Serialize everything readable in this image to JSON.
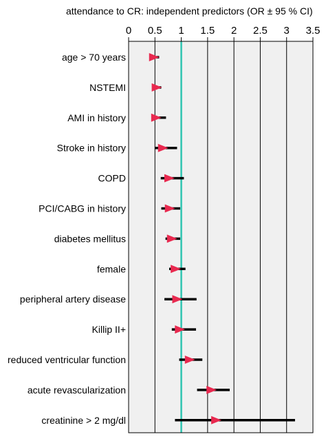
{
  "chart_data": {
    "type": "forest",
    "title": "attendance to CR: independent predictors (OR ± 95 % CI)",
    "xlim": [
      0,
      3.5
    ],
    "xticks": [
      "0",
      "0.5",
      "1",
      "1.5",
      "2",
      "2.5",
      "3",
      "3.5"
    ],
    "xtick_values": [
      0,
      0.5,
      1,
      1.5,
      2,
      2.5,
      3,
      3.5
    ],
    "reference_line": 1,
    "grid": true,
    "colors": {
      "marker": "#e8294f",
      "ci_bar": "#000000",
      "reference_line": "#2ec4b0",
      "plot_background": "#f0f0f0"
    },
    "categories": [
      "age > 70 years",
      "NSTEMI",
      "AMI in history",
      "Stroke in history",
      "COPD",
      "PCI/CABG in history",
      "diabetes mellitus",
      "female",
      "peripheral artery disease",
      "Killip II+",
      "reduced ventricular function",
      "acute revascularization",
      "creatinine > 2 mg/dl"
    ],
    "or": [
      0.48,
      0.53,
      0.52,
      0.65,
      0.77,
      0.78,
      0.82,
      0.89,
      0.92,
      0.97,
      1.16,
      1.57,
      1.66
    ],
    "ci_low": [
      0.45,
      0.47,
      0.44,
      0.5,
      0.61,
      0.62,
      0.7,
      0.77,
      0.68,
      0.82,
      0.96,
      1.3,
      0.88
    ],
    "ci_high": [
      0.58,
      0.62,
      0.71,
      0.92,
      1.05,
      0.98,
      0.98,
      1.08,
      1.29,
      1.28,
      1.4,
      1.92,
      3.16
    ]
  }
}
